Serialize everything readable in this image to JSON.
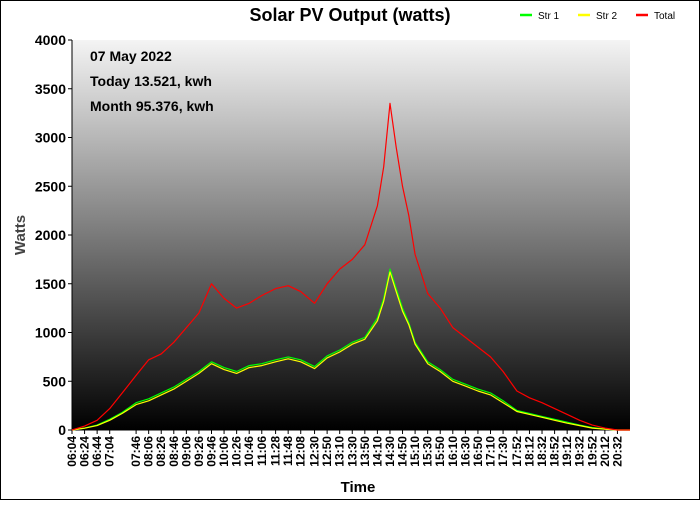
{
  "chart_data": {
    "type": "line",
    "title": "Solar PV Output (watts)",
    "xlabel": "Time",
    "ylabel": "Watts",
    "ylim": [
      0,
      4000
    ],
    "yticks": [
      0,
      500,
      1000,
      1500,
      2000,
      2500,
      3000,
      3500,
      4000
    ],
    "x_range": [
      "06:04",
      "20:52"
    ],
    "xticks": [
      "06:04",
      "06:24",
      "06:44",
      "07:04",
      "07:46",
      "08:06",
      "08:26",
      "08:46",
      "09:06",
      "09:26",
      "09:46",
      "10:06",
      "10:26",
      "10:46",
      "11:06",
      "11:28",
      "11:48",
      "12:08",
      "12:30",
      "12:50",
      "13:10",
      "13:30",
      "13:50",
      "14:10",
      "14:30",
      "14:50",
      "15:10",
      "15:30",
      "15:50",
      "16:10",
      "16:30",
      "16:50",
      "17:10",
      "17:30",
      "17:52",
      "18:12",
      "18:32",
      "18:52",
      "19:12",
      "19:32",
      "19:52",
      "20:12",
      "20:32"
    ],
    "legend_position": "top-right",
    "grid": false,
    "background": "vertical gradient from light grey (top) to black (bottom)",
    "annotations": [
      "07 May 2022",
      "Today 13.521, kwh",
      "Month 95.376, kwh"
    ],
    "series": [
      {
        "name": "Str 1",
        "color": "#00ff00",
        "x": [
          "06:04",
          "06:24",
          "06:44",
          "07:04",
          "07:24",
          "07:46",
          "08:06",
          "08:26",
          "08:46",
          "09:06",
          "09:26",
          "09:46",
          "10:06",
          "10:26",
          "10:46",
          "11:06",
          "11:28",
          "11:48",
          "12:08",
          "12:30",
          "12:50",
          "13:10",
          "13:30",
          "13:50",
          "14:10",
          "14:20",
          "14:30",
          "14:40",
          "14:50",
          "15:00",
          "15:10",
          "15:30",
          "15:50",
          "16:10",
          "16:30",
          "16:50",
          "17:10",
          "17:30",
          "17:52",
          "18:12",
          "18:32",
          "18:52",
          "19:12",
          "19:32",
          "19:52",
          "20:12",
          "20:32",
          "20:52"
        ],
        "values": [
          0,
          20,
          50,
          110,
          180,
          280,
          320,
          380,
          440,
          520,
          600,
          700,
          640,
          600,
          660,
          680,
          720,
          750,
          720,
          650,
          760,
          820,
          900,
          950,
          1150,
          1350,
          1650,
          1450,
          1250,
          1100,
          900,
          700,
          620,
          520,
          470,
          420,
          380,
          300,
          200,
          170,
          140,
          110,
          80,
          50,
          25,
          10,
          0,
          0
        ]
      },
      {
        "name": "Str 2",
        "color": "#ffff00",
        "x": [
          "06:04",
          "06:24",
          "06:44",
          "07:04",
          "07:24",
          "07:46",
          "08:06",
          "08:26",
          "08:46",
          "09:06",
          "09:26",
          "09:46",
          "10:06",
          "10:26",
          "10:46",
          "11:06",
          "11:28",
          "11:48",
          "12:08",
          "12:30",
          "12:50",
          "13:10",
          "13:30",
          "13:50",
          "14:10",
          "14:20",
          "14:30",
          "14:40",
          "14:50",
          "15:00",
          "15:10",
          "15:30",
          "15:50",
          "16:10",
          "16:30",
          "16:50",
          "17:10",
          "17:30",
          "17:52",
          "18:12",
          "18:32",
          "18:52",
          "19:12",
          "19:32",
          "19:52",
          "20:12",
          "20:32",
          "20:52"
        ],
        "values": [
          0,
          18,
          45,
          100,
          170,
          260,
          300,
          360,
          420,
          500,
          580,
          680,
          620,
          580,
          640,
          660,
          700,
          730,
          700,
          630,
          740,
          800,
          880,
          930,
          1120,
          1320,
          1620,
          1420,
          1220,
          1080,
          880,
          680,
          600,
          500,
          450,
          400,
          360,
          280,
          190,
          160,
          130,
          100,
          70,
          45,
          20,
          8,
          0,
          0
        ]
      },
      {
        "name": "Total",
        "color": "#ff0000",
        "x": [
          "06:04",
          "06:24",
          "06:44",
          "07:04",
          "07:24",
          "07:46",
          "08:06",
          "08:26",
          "08:46",
          "09:06",
          "09:26",
          "09:46",
          "10:06",
          "10:26",
          "10:46",
          "11:06",
          "11:28",
          "11:48",
          "12:08",
          "12:30",
          "12:50",
          "13:10",
          "13:30",
          "13:50",
          "14:10",
          "14:20",
          "14:30",
          "14:40",
          "14:50",
          "15:00",
          "15:10",
          "15:30",
          "15:50",
          "16:10",
          "16:30",
          "16:50",
          "17:10",
          "17:30",
          "17:52",
          "18:12",
          "18:32",
          "18:52",
          "19:12",
          "19:32",
          "19:52",
          "20:12",
          "20:32",
          "20:52"
        ],
        "values": [
          0,
          40,
          100,
          220,
          380,
          560,
          720,
          780,
          900,
          1050,
          1200,
          1500,
          1350,
          1250,
          1300,
          1380,
          1450,
          1480,
          1420,
          1300,
          1500,
          1650,
          1750,
          1900,
          2300,
          2700,
          3350,
          2900,
          2500,
          2200,
          1800,
          1400,
          1250,
          1050,
          950,
          850,
          750,
          600,
          400,
          330,
          280,
          220,
          160,
          100,
          50,
          20,
          0,
          0
        ]
      }
    ]
  }
}
